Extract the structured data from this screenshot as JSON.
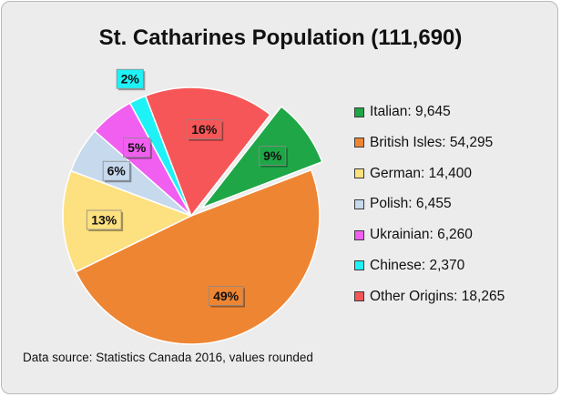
{
  "chart_data": {
    "type": "pie",
    "title": "St. Catharines Population (111,690)",
    "source": "Data source: Statistics Canada 2016, values rounded",
    "legend_position": "right",
    "slices": [
      {
        "label": "Italian",
        "value": 9645,
        "legend": "Italian: 9,645",
        "percent_label": "9%",
        "color": "#1fa647",
        "exploded": true
      },
      {
        "label": "British Isles",
        "value": 54295,
        "legend": "British Isles: 54,295",
        "percent_label": "49%",
        "color": "#ee8533",
        "exploded": false
      },
      {
        "label": "German",
        "value": 14400,
        "legend": "German: 14,400",
        "percent_label": "13%",
        "color": "#fde07f",
        "exploded": false
      },
      {
        "label": "Polish",
        "value": 6455,
        "legend": "Polish: 6,455",
        "percent_label": "6%",
        "color": "#c6d9ed",
        "exploded": false
      },
      {
        "label": "Ukrainian",
        "value": 6260,
        "legend": "Ukrainian: 6,260",
        "percent_label": "5%",
        "color": "#f15ff0",
        "exploded": false
      },
      {
        "label": "Chinese",
        "value": 2370,
        "legend": "Chinese: 2,370",
        "percent_label": "2%",
        "color": "#1ef2f6",
        "exploded": false
      },
      {
        "label": "Other Origins",
        "value": 18265,
        "legend": "Other Origins: 18,265",
        "percent_label": "16%",
        "color": "#f65657",
        "exploded": false
      }
    ]
  }
}
